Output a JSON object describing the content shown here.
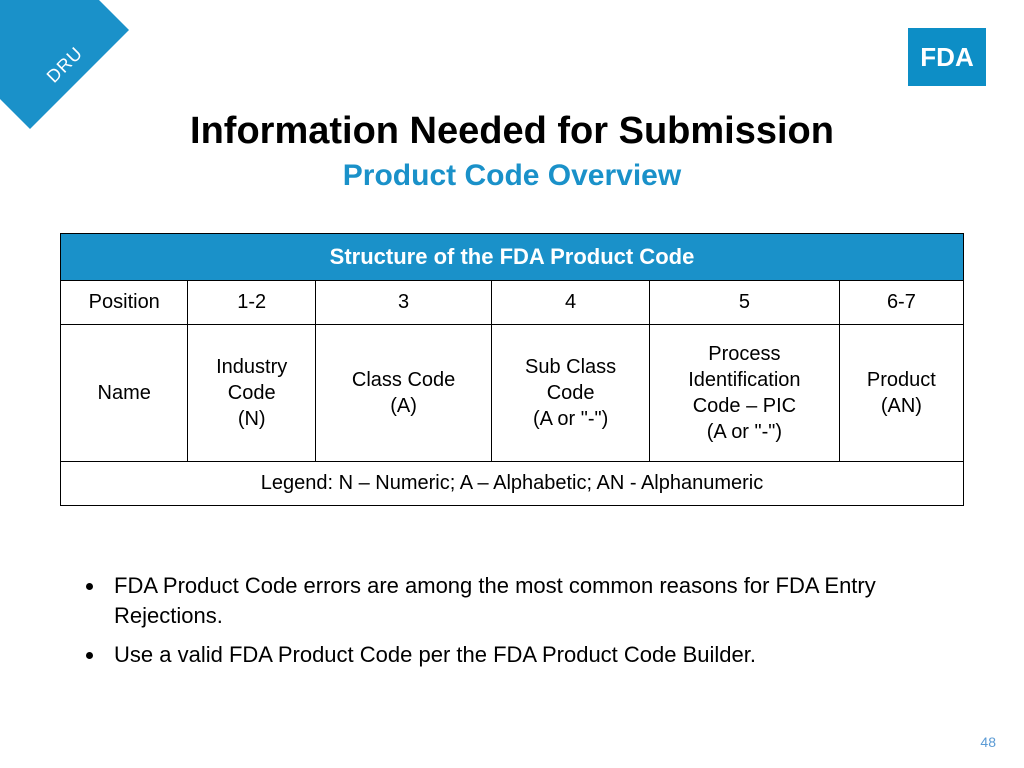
{
  "ribbon": {
    "label": "DRU"
  },
  "logo": {
    "text": "FDA",
    "bg_color": "#0d8ec6"
  },
  "heading": {
    "title": "Information Needed for Submission",
    "subtitle": "Product Code Overview"
  },
  "table": {
    "title": "Structure of the FDA Product Code",
    "header_bg_color": "#1a91c9",
    "header_text_color": "#ffffff",
    "border_color": "#000000",
    "columns": [
      "Position",
      "1-2",
      "3",
      "4",
      "5",
      "6-7"
    ],
    "name_row_label": "Name",
    "name_row": [
      "Industry\nCode\n(N)",
      "Class Code\n(A)",
      "Sub Class\nCode\n(A or \"-\")",
      "Process\nIdentification\nCode – PIC\n(A or \"-\")",
      "Product\n(AN)"
    ],
    "legend": "Legend: N – Numeric; A – Alphabetic; AN - Alphanumeric"
  },
  "bullets": [
    "FDA Product Code errors are among the most common reasons for FDA Entry Rejections.",
    "Use a valid FDA Product Code per the FDA Product Code Builder."
  ],
  "page_number": "48",
  "colors": {
    "accent_blue": "#1a91c9",
    "page_num_color": "#5b9bd5",
    "background": "#ffffff"
  }
}
